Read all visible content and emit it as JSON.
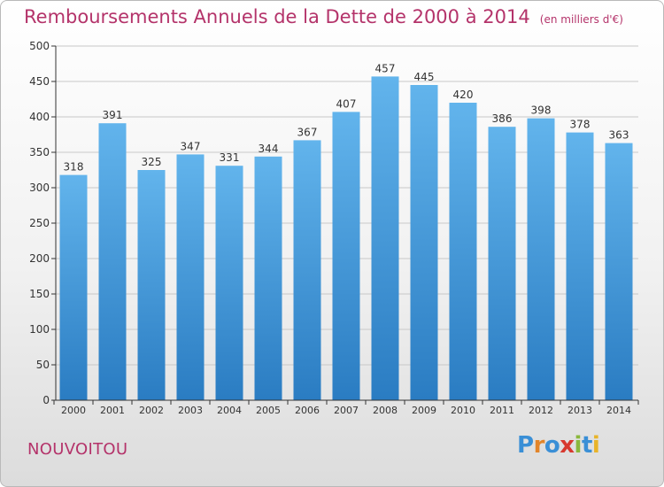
{
  "title": "Remboursements Annuels de la Dette de 2000 à 2014",
  "unit": "(en milliers d'€)",
  "place": "NOUVOITOU",
  "brand": {
    "letters": [
      {
        "char": "P",
        "color": "#3a8fd6"
      },
      {
        "char": "r",
        "color": "#e2852a"
      },
      {
        "char": "o",
        "color": "#3a8fd6"
      },
      {
        "char": "x",
        "color": "#d7392f"
      },
      {
        "char": "i",
        "color": "#8ab83c"
      },
      {
        "char": "t",
        "color": "#3a8fd6"
      },
      {
        "char": "i",
        "color": "#e8b42a"
      }
    ]
  },
  "colors": {
    "bar_top": "#62b4ec",
    "bar_bottom": "#2a7cc2",
    "axis": "#333333",
    "grid": "#c8c8c8",
    "text": "#333333"
  },
  "chart_data": {
    "type": "bar",
    "title": "Remboursements Annuels de la Dette de 2000 à 2014",
    "xlabel": "",
    "ylabel": "",
    "categories": [
      "2000",
      "2001",
      "2002",
      "2003",
      "2004",
      "2005",
      "2006",
      "2007",
      "2008",
      "2009",
      "2010",
      "2011",
      "2012",
      "2013",
      "2014"
    ],
    "values": [
      318,
      391,
      325,
      347,
      331,
      344,
      367,
      407,
      457,
      445,
      420,
      386,
      398,
      378,
      363
    ],
    "ylim": [
      0,
      500
    ],
    "yticks": [
      0,
      50,
      100,
      150,
      200,
      250,
      300,
      350,
      400,
      450,
      500
    ],
    "grid": true,
    "legend": "none"
  }
}
